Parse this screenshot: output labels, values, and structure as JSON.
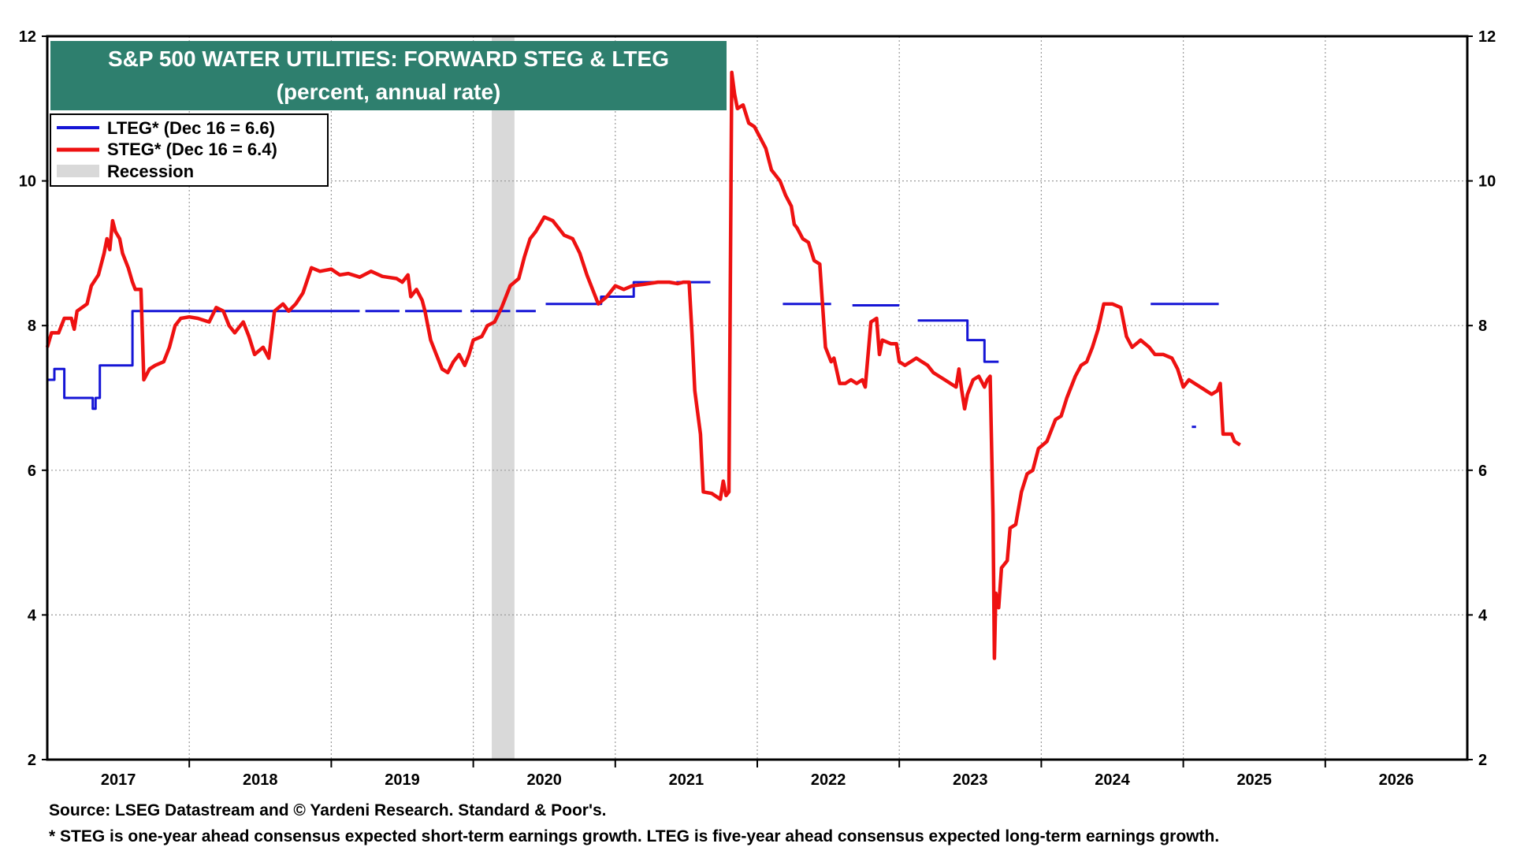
{
  "chart_data": {
    "type": "line",
    "title": "S&P 500 WATER UTILITIES: FORWARD STEG & LTEG",
    "subtitle": "(percent, annual rate)",
    "ylim": [
      2,
      12
    ],
    "yticks": [
      2,
      4,
      6,
      8,
      10,
      12
    ],
    "xlim": [
      2017.0,
      2027.0
    ],
    "xticks": [
      "2017",
      "2018",
      "2019",
      "2020",
      "2021",
      "2022",
      "2023",
      "2024",
      "2025",
      "2026"
    ],
    "grid": true,
    "legend_position": "top-left",
    "legend": [
      {
        "label": "LTEG* (Dec 16 = 6.6)",
        "color": "#1515d6",
        "kind": "line"
      },
      {
        "label": "STEG* (Dec 16 = 6.4)",
        "color": "#ee1111",
        "kind": "line"
      },
      {
        "label": "Recession",
        "color": "#d9d9d9",
        "kind": "box"
      }
    ],
    "recession": [
      [
        2020.13,
        2020.29
      ]
    ],
    "series": [
      {
        "name": "LTEG* (Dec 16 = 6.6)",
        "color": "#1515d6",
        "segments": [
          [
            [
              2017.0,
              7.25
            ],
            [
              2017.05,
              7.25
            ],
            [
              2017.05,
              7.4
            ],
            [
              2017.12,
              7.4
            ],
            [
              2017.12,
              7.0
            ],
            [
              2017.32,
              7.0
            ],
            [
              2017.32,
              6.85
            ],
            [
              2017.34,
              6.85
            ],
            [
              2017.34,
              7.0
            ],
            [
              2017.37,
              7.0
            ],
            [
              2017.37,
              7.45
            ],
            [
              2017.6,
              7.45
            ],
            [
              2017.6,
              8.2
            ],
            [
              2019.2,
              8.2
            ]
          ],
          [
            [
              2019.24,
              8.2
            ],
            [
              2019.48,
              8.2
            ]
          ],
          [
            [
              2019.52,
              8.2
            ],
            [
              2019.92,
              8.2
            ]
          ],
          [
            [
              2019.98,
              8.2
            ],
            [
              2020.26,
              8.2
            ]
          ],
          [
            [
              2020.3,
              8.2
            ],
            [
              2020.44,
              8.2
            ]
          ],
          [
            [
              2020.51,
              8.3
            ],
            [
              2020.9,
              8.3
            ],
            [
              2020.9,
              8.4
            ],
            [
              2021.13,
              8.4
            ],
            [
              2021.13,
              8.6
            ],
            [
              2021.36,
              8.6
            ]
          ],
          [
            [
              2021.43,
              8.6
            ],
            [
              2021.67,
              8.6
            ]
          ],
          [
            [
              2022.18,
              8.3
            ],
            [
              2022.52,
              8.3
            ]
          ],
          [
            [
              2022.67,
              8.28
            ],
            [
              2023.0,
              8.28
            ]
          ],
          [
            [
              2023.13,
              8.07
            ],
            [
              2023.48,
              8.07
            ],
            [
              2023.48,
              7.8
            ],
            [
              2023.6,
              7.8
            ],
            [
              2023.6,
              7.5
            ],
            [
              2023.7,
              7.5
            ]
          ],
          [
            [
              2024.77,
              8.3
            ],
            [
              2025.25,
              8.3
            ]
          ],
          [
            [
              2025.06,
              6.6
            ],
            [
              2025.09,
              6.6
            ]
          ]
        ]
      },
      {
        "name": "STEG* (Dec 16 = 6.4)",
        "color": "#ee1111",
        "segments": [
          [
            [
              2017.0,
              7.7
            ],
            [
              2017.03,
              7.9
            ],
            [
              2017.08,
              7.9
            ],
            [
              2017.12,
              8.1
            ],
            [
              2017.17,
              8.1
            ],
            [
              2017.19,
              7.95
            ],
            [
              2017.21,
              8.2
            ],
            [
              2017.28,
              8.3
            ],
            [
              2017.31,
              8.55
            ],
            [
              2017.36,
              8.7
            ],
            [
              2017.4,
              9.0
            ],
            [
              2017.42,
              9.2
            ],
            [
              2017.44,
              9.05
            ],
            [
              2017.46,
              9.45
            ],
            [
              2017.48,
              9.3
            ],
            [
              2017.51,
              9.2
            ],
            [
              2017.53,
              9.0
            ],
            [
              2017.57,
              8.8
            ],
            [
              2017.6,
              8.6
            ],
            [
              2017.62,
              8.5
            ],
            [
              2017.66,
              8.5
            ],
            [
              2017.68,
              7.25
            ],
            [
              2017.72,
              7.4
            ],
            [
              2017.76,
              7.45
            ],
            [
              2017.82,
              7.5
            ],
            [
              2017.86,
              7.7
            ],
            [
              2017.9,
              8.0
            ],
            [
              2017.94,
              8.1
            ],
            [
              2018.0,
              8.12
            ],
            [
              2018.06,
              8.1
            ],
            [
              2018.14,
              8.05
            ],
            [
              2018.19,
              8.25
            ],
            [
              2018.24,
              8.2
            ],
            [
              2018.28,
              8.0
            ],
            [
              2018.32,
              7.9
            ],
            [
              2018.38,
              8.05
            ],
            [
              2018.42,
              7.85
            ],
            [
              2018.46,
              7.6
            ],
            [
              2018.52,
              7.7
            ],
            [
              2018.56,
              7.55
            ],
            [
              2018.6,
              8.2
            ],
            [
              2018.66,
              8.3
            ],
            [
              2018.7,
              8.2
            ],
            [
              2018.75,
              8.3
            ],
            [
              2018.8,
              8.45
            ],
            [
              2018.86,
              8.8
            ],
            [
              2018.92,
              8.75
            ],
            [
              2019.0,
              8.78
            ],
            [
              2019.06,
              8.7
            ],
            [
              2019.12,
              8.72
            ],
            [
              2019.2,
              8.67
            ],
            [
              2019.28,
              8.75
            ],
            [
              2019.36,
              8.68
            ],
            [
              2019.46,
              8.65
            ],
            [
              2019.5,
              8.6
            ],
            [
              2019.54,
              8.7
            ],
            [
              2019.56,
              8.4
            ],
            [
              2019.6,
              8.5
            ],
            [
              2019.64,
              8.35
            ],
            [
              2019.66,
              8.2
            ],
            [
              2019.7,
              7.8
            ],
            [
              2019.74,
              7.6
            ],
            [
              2019.78,
              7.4
            ],
            [
              2019.82,
              7.35
            ],
            [
              2019.86,
              7.5
            ],
            [
              2019.9,
              7.6
            ],
            [
              2019.94,
              7.45
            ],
            [
              2019.97,
              7.6
            ],
            [
              2020.0,
              7.8
            ],
            [
              2020.06,
              7.85
            ],
            [
              2020.1,
              8.0
            ],
            [
              2020.15,
              8.05
            ],
            [
              2020.2,
              8.25
            ],
            [
              2020.26,
              8.55
            ],
            [
              2020.32,
              8.65
            ],
            [
              2020.36,
              8.95
            ],
            [
              2020.4,
              9.2
            ],
            [
              2020.44,
              9.3
            ],
            [
              2020.5,
              9.5
            ],
            [
              2020.56,
              9.45
            ],
            [
              2020.6,
              9.35
            ],
            [
              2020.64,
              9.25
            ],
            [
              2020.7,
              9.2
            ],
            [
              2020.75,
              9.0
            ],
            [
              2020.8,
              8.7
            ],
            [
              2020.84,
              8.5
            ],
            [
              2020.88,
              8.3
            ],
            [
              2020.94,
              8.4
            ],
            [
              2021.0,
              8.55
            ],
            [
              2021.06,
              8.5
            ],
            [
              2021.12,
              8.55
            ],
            [
              2021.2,
              8.57
            ],
            [
              2021.3,
              8.6
            ],
            [
              2021.38,
              8.6
            ],
            [
              2021.44,
              8.58
            ],
            [
              2021.48,
              8.6
            ],
            [
              2021.52,
              8.6
            ],
            [
              2021.54,
              7.9
            ],
            [
              2021.56,
              7.1
            ],
            [
              2021.58,
              6.8
            ],
            [
              2021.6,
              6.5
            ],
            [
              2021.62,
              5.7
            ],
            [
              2021.68,
              5.68
            ],
            [
              2021.74,
              5.6
            ],
            [
              2021.76,
              5.85
            ],
            [
              2021.78,
              5.65
            ],
            [
              2021.8,
              5.7
            ],
            [
              2021.82,
              11.5
            ],
            [
              2021.84,
              11.2
            ],
            [
              2021.86,
              11.0
            ],
            [
              2021.9,
              11.05
            ],
            [
              2021.94,
              10.8
            ],
            [
              2021.98,
              10.75
            ],
            [
              2022.02,
              10.6
            ],
            [
              2022.06,
              10.45
            ],
            [
              2022.1,
              10.15
            ],
            [
              2022.16,
              10.0
            ],
            [
              2022.2,
              9.8
            ],
            [
              2022.24,
              9.65
            ],
            [
              2022.26,
              9.4
            ],
            [
              2022.28,
              9.35
            ],
            [
              2022.32,
              9.2
            ],
            [
              2022.36,
              9.15
            ],
            [
              2022.4,
              8.9
            ],
            [
              2022.44,
              8.85
            ],
            [
              2022.48,
              7.7
            ],
            [
              2022.52,
              7.5
            ],
            [
              2022.54,
              7.55
            ],
            [
              2022.58,
              7.2
            ],
            [
              2022.62,
              7.2
            ],
            [
              2022.66,
              7.25
            ],
            [
              2022.7,
              7.2
            ],
            [
              2022.74,
              7.25
            ],
            [
              2022.76,
              7.15
            ],
            [
              2022.8,
              8.05
            ],
            [
              2022.84,
              8.1
            ],
            [
              2022.86,
              7.6
            ],
            [
              2022.88,
              7.8
            ],
            [
              2022.94,
              7.75
            ],
            [
              2022.98,
              7.75
            ],
            [
              2023.0,
              7.5
            ],
            [
              2023.04,
              7.45
            ],
            [
              2023.08,
              7.5
            ],
            [
              2023.12,
              7.55
            ],
            [
              2023.16,
              7.5
            ],
            [
              2023.2,
              7.45
            ],
            [
              2023.24,
              7.35
            ],
            [
              2023.28,
              7.3
            ],
            [
              2023.32,
              7.25
            ],
            [
              2023.36,
              7.2
            ],
            [
              2023.4,
              7.15
            ],
            [
              2023.42,
              7.4
            ],
            [
              2023.44,
              7.1
            ],
            [
              2023.46,
              6.85
            ],
            [
              2023.48,
              7.05
            ],
            [
              2023.52,
              7.25
            ],
            [
              2023.56,
              7.3
            ],
            [
              2023.6,
              7.15
            ],
            [
              2023.62,
              7.25
            ],
            [
              2023.64,
              7.3
            ],
            [
              2023.66,
              5.4
            ],
            [
              2023.67,
              3.4
            ],
            [
              2023.68,
              4.3
            ],
            [
              2023.7,
              4.1
            ],
            [
              2023.72,
              4.65
            ],
            [
              2023.76,
              4.75
            ],
            [
              2023.78,
              5.2
            ],
            [
              2023.82,
              5.25
            ],
            [
              2023.86,
              5.7
            ],
            [
              2023.9,
              5.95
            ],
            [
              2023.94,
              6.0
            ],
            [
              2023.98,
              6.3
            ],
            [
              2024.04,
              6.4
            ],
            [
              2024.1,
              6.7
            ],
            [
              2024.14,
              6.75
            ],
            [
              2024.18,
              7.0
            ],
            [
              2024.24,
              7.3
            ],
            [
              2024.28,
              7.45
            ],
            [
              2024.32,
              7.5
            ],
            [
              2024.36,
              7.7
            ],
            [
              2024.4,
              7.95
            ],
            [
              2024.44,
              8.3
            ],
            [
              2024.5,
              8.3
            ],
            [
              2024.56,
              8.25
            ],
            [
              2024.6,
              7.85
            ],
            [
              2024.64,
              7.7
            ],
            [
              2024.7,
              7.8
            ],
            [
              2024.76,
              7.7
            ],
            [
              2024.8,
              7.6
            ],
            [
              2024.86,
              7.6
            ],
            [
              2024.92,
              7.55
            ],
            [
              2024.96,
              7.4
            ],
            [
              2025.0,
              7.15
            ],
            [
              2025.04,
              7.25
            ],
            [
              2025.08,
              7.2
            ],
            [
              2025.12,
              7.15
            ],
            [
              2025.16,
              7.1
            ],
            [
              2025.2,
              7.05
            ],
            [
              2025.24,
              7.1
            ],
            [
              2025.26,
              7.2
            ],
            [
              2025.28,
              6.5
            ],
            [
              2025.34,
              6.5
            ],
            [
              2025.36,
              6.4
            ],
            [
              2025.4,
              6.35
            ]
          ]
        ]
      }
    ]
  },
  "footnotes": {
    "source": "Source: LSEG Datastream and © Yardeni Research. Standard & Poor's.",
    "note": "* STEG is one-year ahead consensus expected short-term earnings growth. LTEG is five-year ahead consensus expected long-term earnings growth."
  }
}
